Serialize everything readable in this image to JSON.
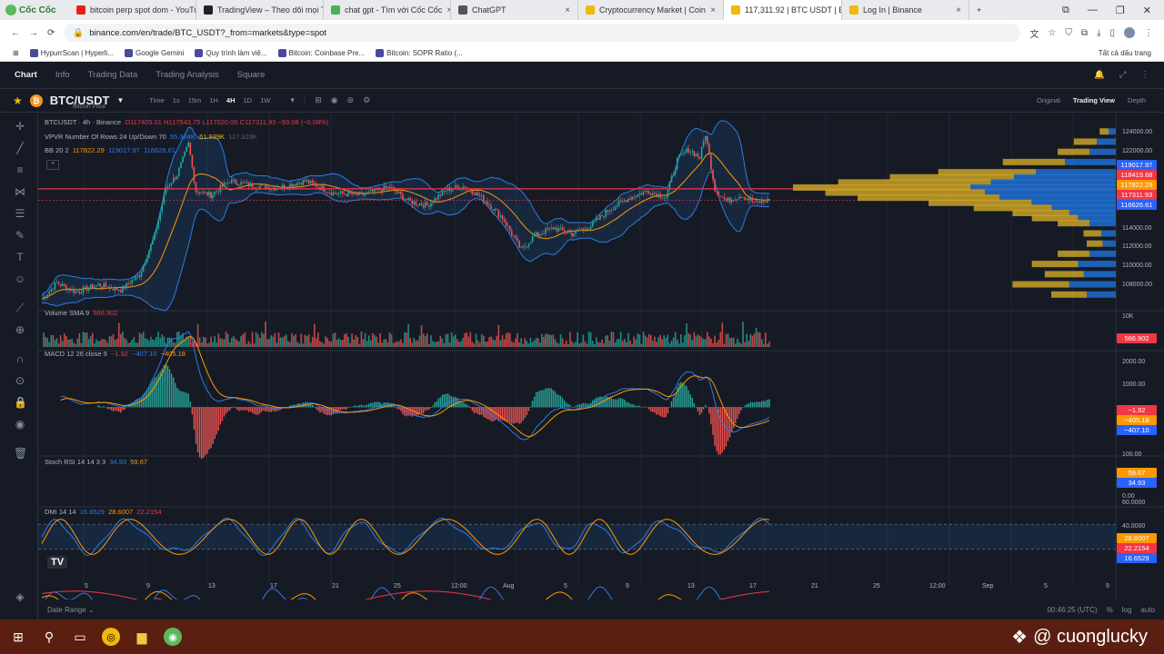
{
  "browser": {
    "name": "Cốc Cốc",
    "tabs": [
      {
        "title": "bitcoin perp spot dom - YouTu",
        "color": "#e62117"
      },
      {
        "title": "TradingView – Theo dõi mọi Th",
        "color": "#222222"
      },
      {
        "title": "chat gpt - Tìm với Cốc Cốc",
        "color": "#4caf50"
      },
      {
        "title": "ChatGPT",
        "color": "#555555"
      },
      {
        "title": "Cryptocurrency Market | Coin",
        "color": "#f0b90b"
      },
      {
        "title": "117,311.92 | BTC USDT | B",
        "color": "#f0b90b"
      },
      {
        "title": "Log In | Binance",
        "color": "#f0b90b"
      }
    ],
    "active_tab": 5,
    "url": "binance.com/en/trade/BTC_USDT?_from=markets&type=spot",
    "bookmarks": [
      "HypurrScan | Hyperli...",
      "Google Gemini",
      "Quy trình làm việ...",
      "Bitcoin: Coinbase Pre...",
      "Bitcoin: SOPR Ratio (..."
    ],
    "all_bookmarks": "Tất cả dấu trang"
  },
  "nav": {
    "items": [
      "Chart",
      "Info",
      "Trading Data",
      "Trading Analysis",
      "Square"
    ],
    "active": 0
  },
  "symbol": {
    "name": "BTC/USDT",
    "sub": "Bitcoin Price"
  },
  "intervals": {
    "items": [
      "Time",
      "1s",
      "15m",
      "1H",
      "4H",
      "1D",
      "1W"
    ],
    "active": 4
  },
  "views": {
    "items": [
      "Original",
      "Trading View",
      "Depth"
    ],
    "active": 1
  },
  "legend": {
    "main_title": "BTCUSDT · 4h · Binance",
    "ohlc": "O117405.01 H117543.75 L117020.00 C117311.93 −93.08 (−0.08%)",
    "vpvr_title": "VPVR Number Of Rows 24 Up/Down 70",
    "vpvr_up": "55.384K",
    "vpvr_down": "61.939K",
    "vpvr_total": "117.323K",
    "bb_title": "BB 20 2",
    "bb_mid": "117822.29",
    "bb_up": "119017.97",
    "bb_low": "116626.61",
    "vol_title": "Volume SMA 9",
    "vol_val": "566.902",
    "macd_title": "MACD 12 26 close 9",
    "macd_hist": "−1.92",
    "macd_line": "−407.10",
    "macd_signal": "−405.18",
    "rsi_title": "Stoch RSI 14 14 3 3",
    "rsi_k": "34.93",
    "rsi_d": "59.67",
    "dmi_title": "DMI 14 14",
    "dmi_plus": "16.6529",
    "dmi_minus": "28.6007",
    "dmi_adx": "22.2154"
  },
  "price_axis": [
    "124000.00",
    "122000.00",
    "120000.00",
    "114000.00",
    "112000.00",
    "110000.00",
    "108000.00"
  ],
  "price_tags": [
    {
      "v": "119017.97",
      "c": "#2962ff"
    },
    {
      "v": "118419.68",
      "c": "#f23645"
    },
    {
      "v": "117822.29",
      "c": "#ff9800"
    },
    {
      "v": "117311.93",
      "c": "#f23645"
    },
    {
      "v": "116626.61",
      "c": "#2962ff"
    }
  ],
  "vol_axis": "10K",
  "vol_tag": "566.902",
  "macd_axis": [
    "2000.00",
    "1000.00"
  ],
  "macd_tags": [
    {
      "v": "−1.92",
      "c": "#f23645"
    },
    {
      "v": "−405.18",
      "c": "#ff9800"
    },
    {
      "v": "−407.10",
      "c": "#2962ff"
    }
  ],
  "rsi_axis": [
    "100.00",
    "0.00"
  ],
  "rsi_tags": [
    {
      "v": "59.67",
      "c": "#ff9800"
    },
    {
      "v": "34.93",
      "c": "#2962ff"
    }
  ],
  "dmi_axis": [
    "60.0000",
    "40.0000"
  ],
  "dmi_tags": [
    {
      "v": "28.6007",
      "c": "#ff9800"
    },
    {
      "v": "22.2154",
      "c": "#f23645"
    },
    {
      "v": "16.6529",
      "c": "#2962ff"
    }
  ],
  "time_axis": [
    "5",
    "9",
    "13",
    "17",
    "21",
    "25",
    "12:00",
    "Aug",
    "5",
    "9",
    "13",
    "17",
    "21",
    "25",
    "12:00",
    "Sep",
    "5",
    "9"
  ],
  "bottom": {
    "date_range": "Date Range ⌄",
    "clock": "00:46:25 (UTC)",
    "pct": "%",
    "log": "log",
    "auto": "auto"
  },
  "watermark": "@ cuonglucky",
  "chart_data": {
    "type": "candlestick",
    "symbol": "BTCUSDT",
    "interval": "4h",
    "ohlc_last": {
      "open": 117405.01,
      "high": 117543.75,
      "low": 117020.0,
      "close": 117311.93,
      "change": -93.08,
      "change_pct": -0.08
    },
    "bollinger": {
      "period": 20,
      "mult": 2,
      "mid": 117822.29,
      "upper": 119017.97,
      "lower": 116626.61
    },
    "ylim": [
      107000,
      125000
    ],
    "price_path": [
      [
        0,
        107600
      ],
      [
        8,
        109200
      ],
      [
        18,
        108300
      ],
      [
        30,
        109000
      ],
      [
        42,
        108500
      ],
      [
        52,
        110000
      ],
      [
        60,
        113800
      ],
      [
        66,
        118500
      ],
      [
        72,
        119800
      ],
      [
        78,
        122800
      ],
      [
        82,
        118200
      ],
      [
        90,
        117800
      ],
      [
        100,
        119200
      ],
      [
        110,
        118800
      ],
      [
        125,
        118500
      ],
      [
        140,
        119200
      ],
      [
        155,
        118000
      ],
      [
        170,
        117800
      ],
      [
        185,
        118600
      ],
      [
        195,
        117200
      ],
      [
        205,
        116800
      ],
      [
        215,
        118300
      ],
      [
        225,
        118700
      ],
      [
        235,
        117400
      ],
      [
        245,
        115600
      ],
      [
        255,
        112400
      ],
      [
        262,
        113800
      ],
      [
        272,
        114600
      ],
      [
        282,
        114000
      ],
      [
        292,
        114800
      ],
      [
        302,
        116400
      ],
      [
        312,
        117500
      ],
      [
        322,
        118200
      ],
      [
        332,
        117600
      ],
      [
        338,
        121300
      ],
      [
        344,
        122300
      ],
      [
        350,
        121500
      ],
      [
        353,
        123800
      ],
      [
        358,
        118400
      ],
      [
        364,
        117200
      ],
      [
        372,
        117800
      ],
      [
        380,
        117000
      ],
      [
        387,
        117311.93
      ]
    ],
    "vpvr_profile": [
      [
        124000,
        0.05
      ],
      [
        123000,
        0.13
      ],
      [
        122000,
        0.18
      ],
      [
        121000,
        0.35
      ],
      [
        120000,
        0.55
      ],
      [
        119500,
        0.7
      ],
      [
        119000,
        0.86
      ],
      [
        118500,
        1.0
      ],
      [
        118000,
        0.9
      ],
      [
        117500,
        0.8
      ],
      [
        117000,
        0.58
      ],
      [
        116500,
        0.44
      ],
      [
        116000,
        0.32
      ],
      [
        115500,
        0.26
      ],
      [
        115000,
        0.18
      ],
      [
        114000,
        0.1
      ],
      [
        113000,
        0.09
      ],
      [
        112000,
        0.18
      ],
      [
        111000,
        0.26
      ],
      [
        110000,
        0.22
      ],
      [
        109000,
        0.32
      ],
      [
        108000,
        0.2
      ]
    ],
    "volume_sma": 566.902,
    "macd": {
      "fast": 12,
      "slow": 26,
      "signal": 9,
      "macd": -407.1,
      "signal_line": -405.18,
      "hist": -1.92
    },
    "stoch_rsi": {
      "k": 34.93,
      "d": 59.67
    },
    "dmi": {
      "plus": 16.6529,
      "minus": 28.6007,
      "adx": 22.2154
    }
  }
}
